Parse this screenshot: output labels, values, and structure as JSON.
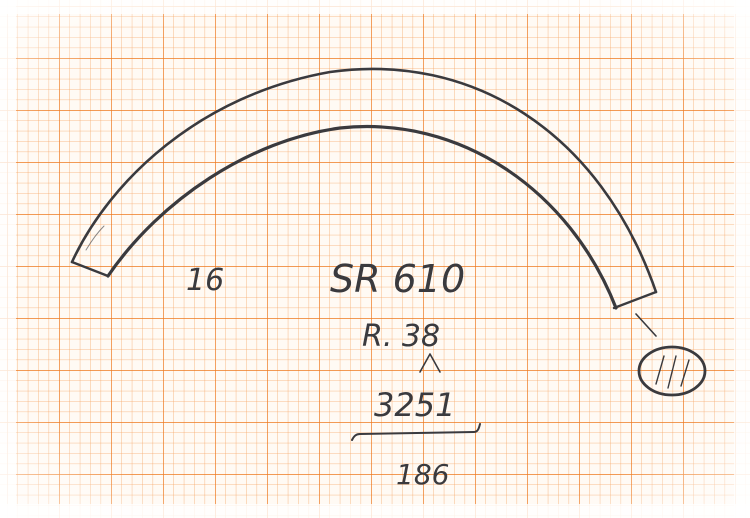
{
  "sheet": {
    "paper": "graph paper with orange grid",
    "grid_color": "#f08a2a",
    "fine_grid_color": "#f7b27a",
    "pencil_color": "#3a3a3e"
  },
  "annotations": {
    "left_number": "16",
    "part_code": "SR 610",
    "radius": "R. 38",
    "dimension_inner": "3251",
    "dimension_total": "186"
  }
}
